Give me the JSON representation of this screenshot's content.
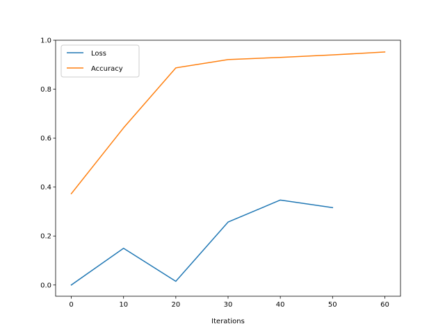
{
  "chart_data": {
    "type": "line",
    "title": "",
    "xlabel": "Iterations",
    "ylabel": "",
    "xlim": [
      -3,
      63
    ],
    "ylim": [
      -0.046,
      1.0
    ],
    "xticks": [
      0,
      10,
      20,
      30,
      40,
      50,
      60
    ],
    "yticks": [
      0.0,
      0.2,
      0.4,
      0.6,
      0.8,
      1.0
    ],
    "xtick_labels": [
      "0",
      "10",
      "20",
      "30",
      "40",
      "50",
      "60"
    ],
    "ytick_labels": [
      "0.0",
      "0.2",
      "0.4",
      "0.6",
      "0.8",
      "1.0"
    ],
    "grid": false,
    "legend": "top-left",
    "series": [
      {
        "name": "Loss",
        "color": "#1f77b4",
        "x": [
          0,
          10,
          20,
          30,
          40,
          50
        ],
        "y": [
          0.0,
          0.15,
          0.015,
          0.257,
          0.347,
          0.316
        ]
      },
      {
        "name": "Accuracy",
        "color": "#ff7f0e",
        "x": [
          0,
          10,
          20,
          30,
          40,
          50,
          60
        ],
        "y": [
          0.373,
          0.642,
          0.887,
          0.921,
          0.93,
          0.94,
          0.952
        ]
      }
    ]
  }
}
